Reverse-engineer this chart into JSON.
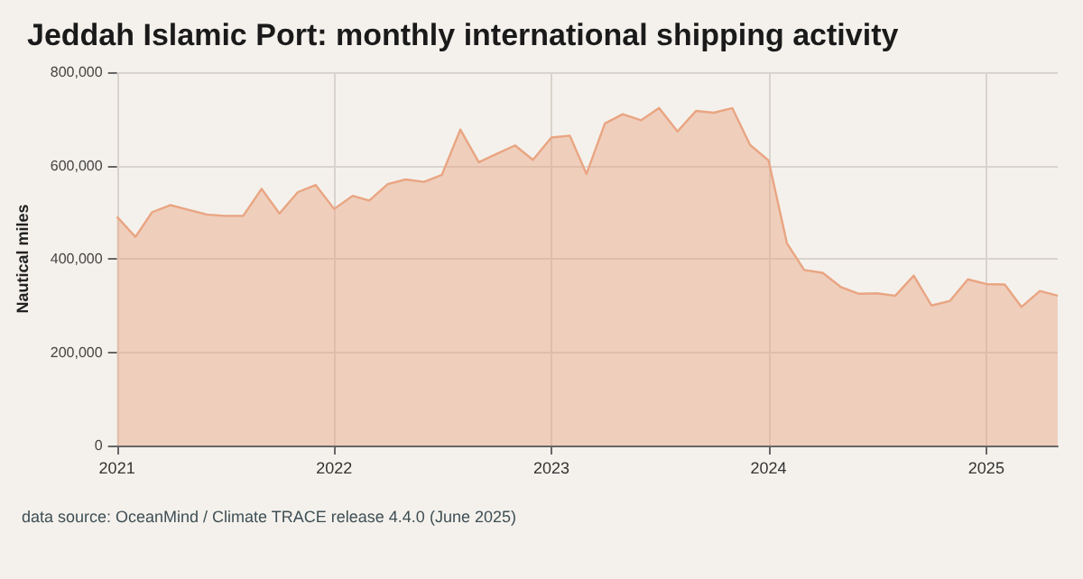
{
  "chart_data": {
    "type": "area",
    "title": "Jeddah Islamic Port: monthly international shipping activity",
    "ylabel": "Nautical miles",
    "x": [
      "2021-01",
      "2021-02",
      "2021-03",
      "2021-04",
      "2021-05",
      "2021-06",
      "2021-07",
      "2021-08",
      "2021-09",
      "2021-10",
      "2021-11",
      "2021-12",
      "2022-01",
      "2022-02",
      "2022-03",
      "2022-04",
      "2022-05",
      "2022-06",
      "2022-07",
      "2022-08",
      "2022-09",
      "2022-10",
      "2022-11",
      "2022-12",
      "2023-01",
      "2023-02",
      "2023-03",
      "2023-04",
      "2023-05",
      "2023-06",
      "2023-07",
      "2023-08",
      "2023-09",
      "2023-10",
      "2023-11",
      "2023-12",
      "2024-01",
      "2024-02",
      "2024-03",
      "2024-04",
      "2024-05",
      "2024-06",
      "2024-07",
      "2024-08",
      "2024-09",
      "2024-10",
      "2024-11",
      "2024-12",
      "2025-01",
      "2025-02",
      "2025-03",
      "2025-04",
      "2025-05"
    ],
    "series": [
      {
        "color": "#e9a582",
        "values": [
          490000,
          447000,
          500000,
          515000,
          505000,
          495000,
          492000,
          492000,
          550000,
          497000,
          543000,
          558000,
          507000,
          535000,
          525000,
          560000,
          570000,
          565000,
          580000,
          677000,
          607000,
          625000,
          643000,
          612000,
          660000,
          664000,
          582000,
          690000,
          710000,
          697000,
          723000,
          673000,
          717000,
          713000,
          723000,
          644000,
          611000,
          433000,
          376000,
          370000,
          340000,
          325000,
          326000,
          321000,
          364000,
          300000,
          310000,
          356000,
          346000,
          345000,
          297000,
          331000,
          321000
        ]
      }
    ],
    "xlim": [
      "2021-01",
      "2025-05"
    ],
    "xticks": [
      {
        "value": "2021-01",
        "label": "2021"
      },
      {
        "value": "2022-01",
        "label": "2022"
      },
      {
        "value": "2023-01",
        "label": "2023"
      },
      {
        "value": "2024-01",
        "label": "2024"
      },
      {
        "value": "2025-01",
        "label": "2025"
      }
    ],
    "ylim": [
      0,
      800000
    ],
    "yticks": [
      0,
      {
        "value": 200000,
        "label": "200,000"
      },
      {
        "value": 400000,
        "label": "400,000"
      },
      {
        "value": 600000,
        "label": "600,000"
      },
      {
        "value": 800000,
        "label": "800,000"
      }
    ],
    "grid": true,
    "annotations": [
      "data source: OceanMind / Climate TRACE release 4.4.0 (June 2025)"
    ]
  }
}
